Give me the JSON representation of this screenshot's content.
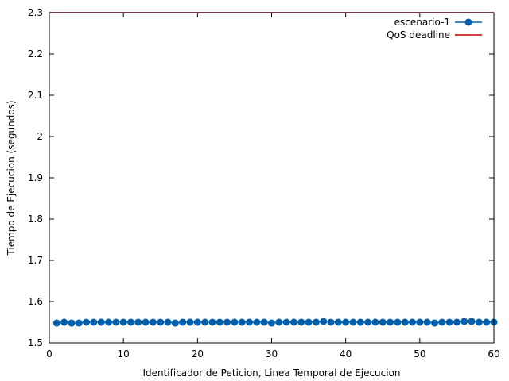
{
  "chart_data": {
    "type": "line",
    "title": "",
    "xlabel": "Identificador de Peticion, Linea Temporal de Ejecucion",
    "ylabel": "Tiempo de Ejecucion (segundos)",
    "xlim": [
      0,
      60
    ],
    "ylim": [
      1.5,
      2.3
    ],
    "xticks": [
      0,
      10,
      20,
      30,
      40,
      50,
      60
    ],
    "xtick_labels": [
      "0",
      "10",
      "20",
      "30",
      "40",
      "50",
      "60"
    ],
    "yticks": [
      1.5,
      1.6,
      1.7,
      1.8,
      1.9,
      2.0,
      2.1,
      2.2,
      2.3
    ],
    "ytick_labels": [
      "1.5",
      "1.6",
      "1.7",
      "1.8",
      "1.9",
      "2",
      "2.1",
      "2.2",
      "2.3"
    ],
    "grid": false,
    "legend_position": "top-right",
    "series": [
      {
        "name": "escenario-1",
        "color": "#0060ad",
        "marker": "circle",
        "x": [
          1,
          2,
          3,
          4,
          5,
          6,
          7,
          8,
          9,
          10,
          11,
          12,
          13,
          14,
          15,
          16,
          17,
          18,
          19,
          20,
          21,
          22,
          23,
          24,
          25,
          26,
          27,
          28,
          29,
          30,
          31,
          32,
          33,
          34,
          35,
          36,
          37,
          38,
          39,
          40,
          41,
          42,
          43,
          44,
          45,
          46,
          47,
          48,
          49,
          50,
          51,
          52,
          53,
          54,
          55,
          56,
          57,
          58,
          59,
          60
        ],
        "y": [
          1.548,
          1.55,
          1.548,
          1.548,
          1.55,
          1.55,
          1.55,
          1.55,
          1.55,
          1.55,
          1.55,
          1.55,
          1.55,
          1.55,
          1.55,
          1.55,
          1.548,
          1.55,
          1.55,
          1.55,
          1.55,
          1.55,
          1.55,
          1.55,
          1.55,
          1.55,
          1.55,
          1.55,
          1.55,
          1.548,
          1.55,
          1.55,
          1.55,
          1.55,
          1.55,
          1.55,
          1.552,
          1.55,
          1.55,
          1.55,
          1.55,
          1.55,
          1.55,
          1.55,
          1.55,
          1.55,
          1.55,
          1.55,
          1.55,
          1.55,
          1.55,
          1.548,
          1.55,
          1.55,
          1.55,
          1.552,
          1.552,
          1.55,
          1.55,
          1.55
        ]
      },
      {
        "name": "QoS deadline",
        "color": "#cc0000",
        "marker": "none",
        "x": [
          0,
          60
        ],
        "y": [
          2.3,
          2.3
        ]
      }
    ]
  }
}
